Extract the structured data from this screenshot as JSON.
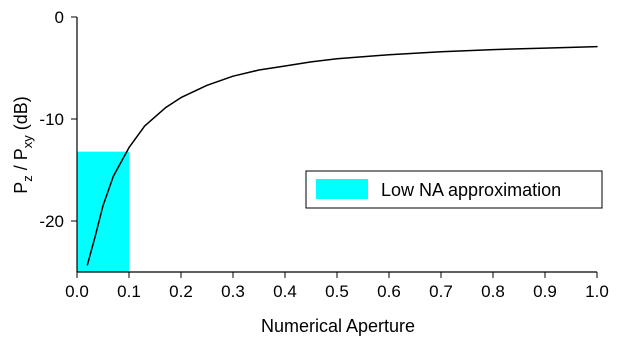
{
  "chart_data": {
    "type": "line",
    "title": "",
    "xlabel": "Numerical Aperture",
    "ylabel": {
      "main": "P",
      "sub1": "z",
      "sep": " / P",
      "sub2": "xy",
      "unit": " (dB)"
    },
    "xlim": [
      0,
      1.0
    ],
    "ylim": [
      -25,
      0
    ],
    "x_ticks": [
      0.0,
      0.1,
      0.2,
      0.3,
      0.4,
      0.5,
      0.6,
      0.7,
      0.8,
      0.9,
      1.0
    ],
    "x_tick_labels": [
      "0.0",
      "0.1",
      "0.2",
      "0.3",
      "0.4",
      "0.5",
      "0.6",
      "0.7",
      "0.8",
      "0.9",
      "1.0"
    ],
    "y_ticks": [
      0,
      -10,
      -20
    ],
    "y_tick_labels": [
      "0",
      "-10",
      "-20"
    ],
    "grid": false,
    "series": [
      {
        "color": "#000000",
        "x": [
          0.02,
          0.035,
          0.05,
          0.07,
          0.1,
          0.13,
          0.17,
          0.2,
          0.25,
          0.3,
          0.35,
          0.4,
          0.45,
          0.5,
          0.6,
          0.7,
          0.8,
          0.9,
          1.0
        ],
        "y": [
          -24.3,
          -21.5,
          -18.5,
          -15.6,
          -12.8,
          -10.7,
          -8.9,
          -7.9,
          -6.7,
          -5.8,
          -5.2,
          -4.8,
          -4.4,
          -4.1,
          -3.7,
          -3.4,
          -3.2,
          -3.05,
          -2.9
        ]
      }
    ],
    "shaded_region": {
      "label": "Low NA approximation",
      "color": "#00ffff",
      "x_range": [
        0,
        0.1
      ],
      "y_range": [
        -25,
        -13.2
      ]
    },
    "legend": {
      "position": "right",
      "entries": [
        {
          "label": "Low NA approximation",
          "color": "#00ffff"
        }
      ]
    }
  }
}
